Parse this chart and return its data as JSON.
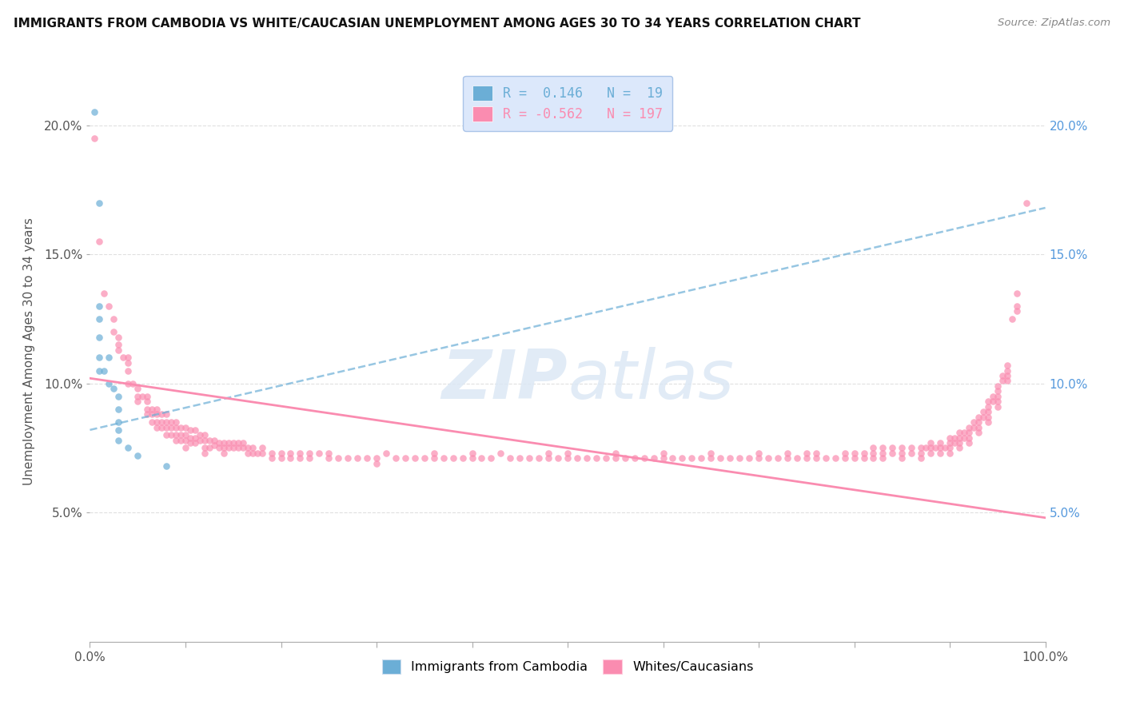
{
  "title": "IMMIGRANTS FROM CAMBODIA VS WHITE/CAUCASIAN UNEMPLOYMENT AMONG AGES 30 TO 34 YEARS CORRELATION CHART",
  "source": "Source: ZipAtlas.com",
  "ylabel": "Unemployment Among Ages 30 to 34 years",
  "xlim": [
    0,
    1.0
  ],
  "ylim": [
    0,
    0.225
  ],
  "yticks": [
    0.05,
    0.1,
    0.15,
    0.2
  ],
  "ytick_labels": [
    "5.0%",
    "10.0%",
    "15.0%",
    "20.0%"
  ],
  "xticks": [
    0.0,
    0.1,
    0.2,
    0.3,
    0.4,
    0.5,
    0.6,
    0.7,
    0.8,
    0.9,
    1.0
  ],
  "xtick_labels": [
    "0.0%",
    "",
    "",
    "",
    "",
    "",
    "",
    "",
    "",
    "",
    "100.0%"
  ],
  "r_cambodia": "0.146",
  "n_cambodia": "19",
  "r_white": "-0.562",
  "n_white": "197",
  "cambodia_color": "#6baed6",
  "white_color": "#fa8cb0",
  "cambodia_trendline": [
    [
      0.0,
      0.082
    ],
    [
      1.0,
      0.168
    ]
  ],
  "white_trendline": [
    [
      0.0,
      0.102
    ],
    [
      1.0,
      0.048
    ]
  ],
  "cambodia_scatter": [
    [
      0.005,
      0.205
    ],
    [
      0.01,
      0.17
    ],
    [
      0.01,
      0.13
    ],
    [
      0.01,
      0.125
    ],
    [
      0.01,
      0.118
    ],
    [
      0.01,
      0.11
    ],
    [
      0.01,
      0.105
    ],
    [
      0.015,
      0.105
    ],
    [
      0.02,
      0.11
    ],
    [
      0.02,
      0.1
    ],
    [
      0.025,
      0.098
    ],
    [
      0.03,
      0.095
    ],
    [
      0.03,
      0.09
    ],
    [
      0.03,
      0.085
    ],
    [
      0.03,
      0.082
    ],
    [
      0.03,
      0.078
    ],
    [
      0.04,
      0.075
    ],
    [
      0.05,
      0.072
    ],
    [
      0.08,
      0.068
    ]
  ],
  "white_scatter": [
    [
      0.005,
      0.195
    ],
    [
      0.01,
      0.155
    ],
    [
      0.015,
      0.135
    ],
    [
      0.02,
      0.13
    ],
    [
      0.025,
      0.125
    ],
    [
      0.025,
      0.12
    ],
    [
      0.03,
      0.118
    ],
    [
      0.03,
      0.115
    ],
    [
      0.03,
      0.113
    ],
    [
      0.035,
      0.11
    ],
    [
      0.04,
      0.11
    ],
    [
      0.04,
      0.108
    ],
    [
      0.04,
      0.105
    ],
    [
      0.04,
      0.1
    ],
    [
      0.045,
      0.1
    ],
    [
      0.05,
      0.098
    ],
    [
      0.05,
      0.095
    ],
    [
      0.05,
      0.093
    ],
    [
      0.055,
      0.095
    ],
    [
      0.06,
      0.095
    ],
    [
      0.06,
      0.093
    ],
    [
      0.06,
      0.09
    ],
    [
      0.06,
      0.088
    ],
    [
      0.065,
      0.09
    ],
    [
      0.065,
      0.088
    ],
    [
      0.065,
      0.085
    ],
    [
      0.07,
      0.09
    ],
    [
      0.07,
      0.088
    ],
    [
      0.07,
      0.085
    ],
    [
      0.07,
      0.083
    ],
    [
      0.075,
      0.088
    ],
    [
      0.075,
      0.085
    ],
    [
      0.075,
      0.083
    ],
    [
      0.08,
      0.088
    ],
    [
      0.08,
      0.085
    ],
    [
      0.08,
      0.083
    ],
    [
      0.08,
      0.08
    ],
    [
      0.085,
      0.085
    ],
    [
      0.085,
      0.083
    ],
    [
      0.085,
      0.08
    ],
    [
      0.09,
      0.085
    ],
    [
      0.09,
      0.083
    ],
    [
      0.09,
      0.08
    ],
    [
      0.09,
      0.078
    ],
    [
      0.095,
      0.083
    ],
    [
      0.095,
      0.08
    ],
    [
      0.095,
      0.078
    ],
    [
      0.1,
      0.083
    ],
    [
      0.1,
      0.08
    ],
    [
      0.1,
      0.078
    ],
    [
      0.1,
      0.075
    ],
    [
      0.105,
      0.082
    ],
    [
      0.105,
      0.079
    ],
    [
      0.105,
      0.077
    ],
    [
      0.11,
      0.082
    ],
    [
      0.11,
      0.079
    ],
    [
      0.11,
      0.077
    ],
    [
      0.115,
      0.08
    ],
    [
      0.115,
      0.078
    ],
    [
      0.12,
      0.08
    ],
    [
      0.12,
      0.078
    ],
    [
      0.12,
      0.075
    ],
    [
      0.12,
      0.073
    ],
    [
      0.125,
      0.078
    ],
    [
      0.125,
      0.075
    ],
    [
      0.13,
      0.078
    ],
    [
      0.13,
      0.076
    ],
    [
      0.135,
      0.077
    ],
    [
      0.135,
      0.075
    ],
    [
      0.14,
      0.077
    ],
    [
      0.14,
      0.075
    ],
    [
      0.14,
      0.073
    ],
    [
      0.145,
      0.077
    ],
    [
      0.145,
      0.075
    ],
    [
      0.15,
      0.077
    ],
    [
      0.15,
      0.075
    ],
    [
      0.155,
      0.077
    ],
    [
      0.155,
      0.075
    ],
    [
      0.16,
      0.077
    ],
    [
      0.16,
      0.075
    ],
    [
      0.165,
      0.075
    ],
    [
      0.165,
      0.073
    ],
    [
      0.17,
      0.075
    ],
    [
      0.17,
      0.073
    ],
    [
      0.175,
      0.073
    ],
    [
      0.18,
      0.075
    ],
    [
      0.18,
      0.073
    ],
    [
      0.19,
      0.073
    ],
    [
      0.19,
      0.071
    ],
    [
      0.2,
      0.073
    ],
    [
      0.2,
      0.071
    ],
    [
      0.21,
      0.073
    ],
    [
      0.21,
      0.071
    ],
    [
      0.22,
      0.073
    ],
    [
      0.22,
      0.071
    ],
    [
      0.23,
      0.073
    ],
    [
      0.23,
      0.071
    ],
    [
      0.24,
      0.073
    ],
    [
      0.25,
      0.073
    ],
    [
      0.25,
      0.071
    ],
    [
      0.26,
      0.071
    ],
    [
      0.27,
      0.071
    ],
    [
      0.28,
      0.071
    ],
    [
      0.29,
      0.071
    ],
    [
      0.3,
      0.071
    ],
    [
      0.3,
      0.069
    ],
    [
      0.31,
      0.073
    ],
    [
      0.32,
      0.071
    ],
    [
      0.33,
      0.071
    ],
    [
      0.34,
      0.071
    ],
    [
      0.35,
      0.071
    ],
    [
      0.36,
      0.073
    ],
    [
      0.36,
      0.071
    ],
    [
      0.37,
      0.071
    ],
    [
      0.38,
      0.071
    ],
    [
      0.39,
      0.071
    ],
    [
      0.4,
      0.073
    ],
    [
      0.4,
      0.071
    ],
    [
      0.41,
      0.071
    ],
    [
      0.42,
      0.071
    ],
    [
      0.43,
      0.073
    ],
    [
      0.44,
      0.071
    ],
    [
      0.45,
      0.071
    ],
    [
      0.46,
      0.071
    ],
    [
      0.47,
      0.071
    ],
    [
      0.48,
      0.073
    ],
    [
      0.48,
      0.071
    ],
    [
      0.49,
      0.071
    ],
    [
      0.5,
      0.073
    ],
    [
      0.5,
      0.071
    ],
    [
      0.51,
      0.071
    ],
    [
      0.52,
      0.071
    ],
    [
      0.53,
      0.071
    ],
    [
      0.54,
      0.071
    ],
    [
      0.55,
      0.073
    ],
    [
      0.55,
      0.071
    ],
    [
      0.56,
      0.071
    ],
    [
      0.57,
      0.071
    ],
    [
      0.58,
      0.071
    ],
    [
      0.59,
      0.071
    ],
    [
      0.6,
      0.073
    ],
    [
      0.6,
      0.071
    ],
    [
      0.61,
      0.071
    ],
    [
      0.62,
      0.071
    ],
    [
      0.63,
      0.071
    ],
    [
      0.64,
      0.071
    ],
    [
      0.65,
      0.073
    ],
    [
      0.65,
      0.071
    ],
    [
      0.66,
      0.071
    ],
    [
      0.67,
      0.071
    ],
    [
      0.68,
      0.071
    ],
    [
      0.69,
      0.071
    ],
    [
      0.7,
      0.073
    ],
    [
      0.7,
      0.071
    ],
    [
      0.71,
      0.071
    ],
    [
      0.72,
      0.071
    ],
    [
      0.73,
      0.073
    ],
    [
      0.73,
      0.071
    ],
    [
      0.74,
      0.071
    ],
    [
      0.75,
      0.073
    ],
    [
      0.75,
      0.071
    ],
    [
      0.76,
      0.073
    ],
    [
      0.76,
      0.071
    ],
    [
      0.77,
      0.071
    ],
    [
      0.78,
      0.071
    ],
    [
      0.79,
      0.073
    ],
    [
      0.79,
      0.071
    ],
    [
      0.8,
      0.073
    ],
    [
      0.8,
      0.071
    ],
    [
      0.81,
      0.073
    ],
    [
      0.81,
      0.071
    ],
    [
      0.82,
      0.075
    ],
    [
      0.82,
      0.073
    ],
    [
      0.82,
      0.071
    ],
    [
      0.83,
      0.075
    ],
    [
      0.83,
      0.073
    ],
    [
      0.83,
      0.071
    ],
    [
      0.84,
      0.075
    ],
    [
      0.84,
      0.073
    ],
    [
      0.85,
      0.075
    ],
    [
      0.85,
      0.073
    ],
    [
      0.85,
      0.071
    ],
    [
      0.86,
      0.075
    ],
    [
      0.86,
      0.073
    ],
    [
      0.87,
      0.075
    ],
    [
      0.87,
      0.073
    ],
    [
      0.87,
      0.071
    ],
    [
      0.875,
      0.075
    ],
    [
      0.88,
      0.077
    ],
    [
      0.88,
      0.075
    ],
    [
      0.88,
      0.073
    ],
    [
      0.885,
      0.075
    ],
    [
      0.89,
      0.077
    ],
    [
      0.89,
      0.075
    ],
    [
      0.89,
      0.073
    ],
    [
      0.895,
      0.075
    ],
    [
      0.9,
      0.079
    ],
    [
      0.9,
      0.077
    ],
    [
      0.9,
      0.075
    ],
    [
      0.9,
      0.073
    ],
    [
      0.905,
      0.079
    ],
    [
      0.905,
      0.077
    ],
    [
      0.91,
      0.081
    ],
    [
      0.91,
      0.079
    ],
    [
      0.91,
      0.077
    ],
    [
      0.91,
      0.075
    ],
    [
      0.915,
      0.081
    ],
    [
      0.915,
      0.079
    ],
    [
      0.92,
      0.083
    ],
    [
      0.92,
      0.081
    ],
    [
      0.92,
      0.079
    ],
    [
      0.92,
      0.077
    ],
    [
      0.925,
      0.085
    ],
    [
      0.925,
      0.083
    ],
    [
      0.93,
      0.087
    ],
    [
      0.93,
      0.085
    ],
    [
      0.93,
      0.083
    ],
    [
      0.93,
      0.081
    ],
    [
      0.935,
      0.089
    ],
    [
      0.935,
      0.087
    ],
    [
      0.94,
      0.093
    ],
    [
      0.94,
      0.091
    ],
    [
      0.94,
      0.089
    ],
    [
      0.94,
      0.087
    ],
    [
      0.94,
      0.085
    ],
    [
      0.945,
      0.095
    ],
    [
      0.945,
      0.093
    ],
    [
      0.95,
      0.099
    ],
    [
      0.95,
      0.097
    ],
    [
      0.95,
      0.095
    ],
    [
      0.95,
      0.093
    ],
    [
      0.95,
      0.091
    ],
    [
      0.955,
      0.103
    ],
    [
      0.955,
      0.101
    ],
    [
      0.96,
      0.107
    ],
    [
      0.96,
      0.105
    ],
    [
      0.96,
      0.103
    ],
    [
      0.96,
      0.101
    ],
    [
      0.965,
      0.125
    ],
    [
      0.97,
      0.135
    ],
    [
      0.97,
      0.13
    ],
    [
      0.97,
      0.128
    ],
    [
      0.98,
      0.17
    ]
  ],
  "watermark_zip": "ZIP",
  "watermark_atlas": "atlas",
  "legend_box_color": "#dce8fb",
  "legend_border_color": "#aac4e8",
  "grid_color": "#e0e0e0",
  "grid_linestyle": "--",
  "background_color": "#ffffff"
}
